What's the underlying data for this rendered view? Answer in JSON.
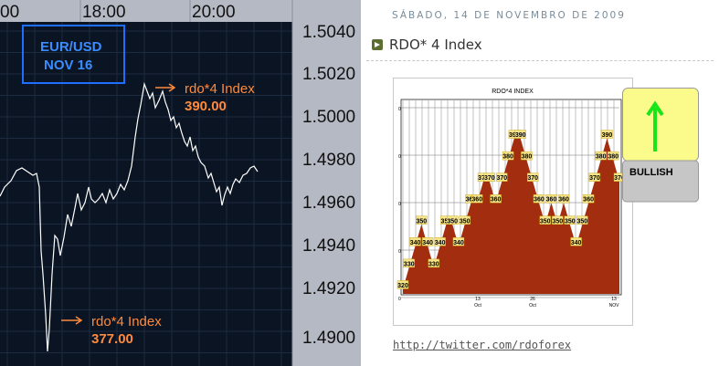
{
  "fx_chart": {
    "time_labels": [
      "00",
      "18:00",
      "20:00"
    ],
    "price_labels": [
      "1.5040",
      "1.5020",
      "1.5000",
      "1.4980",
      "1.4960",
      "1.4940",
      "1.4920",
      "1.4900"
    ],
    "badge_line1": "EUR/USD",
    "badge_line2": "NOV 16",
    "annotation_high_label": "rdo*4 Index",
    "annotation_high_value": "390.00",
    "annotation_low_label": "rdo*4 Index",
    "annotation_low_value": "377.00",
    "colors": {
      "background": "#0b1422",
      "axis_panel": "#b4b9c4",
      "line": "#ffffff",
      "annotation": "#ff8a3c",
      "badge_border": "#1e6fff"
    }
  },
  "blog": {
    "date": "SÁBADO, 14 DE NOVEMBRO DE 2009",
    "post_title": "RDO* 4 Index",
    "link": "http://twitter.com/rdoforex"
  },
  "chart_data": {
    "type": "area",
    "title": "RDO*4 INDEX",
    "x_tick_labels": [
      "13",
      "Oct",
      "26",
      "Oct",
      "13",
      "NOV"
    ],
    "y_tick_labels": [
      "0",
      "0",
      "0",
      "0",
      "0"
    ],
    "values": [
      320,
      330,
      340,
      350,
      340,
      330,
      340,
      350,
      350,
      340,
      350,
      360,
      360,
      370,
      370,
      360,
      370,
      380,
      390,
      390,
      380,
      370,
      360,
      350,
      360,
      350,
      360,
      350,
      340,
      350,
      360,
      370,
      380,
      390,
      380,
      370
    ],
    "labels": [
      "320",
      "330",
      "340",
      "350",
      "340",
      "330",
      "340",
      "350",
      "350",
      "340",
      "350",
      "360",
      "360",
      "370",
      "370",
      "360",
      "370",
      "380",
      "390",
      "390",
      "380",
      "370",
      "360",
      "350",
      "360",
      "350",
      "360",
      "350",
      "340",
      "350",
      "360",
      "370",
      "380",
      "390",
      "380",
      "370"
    ],
    "signal": "BULLISH",
    "colors": {
      "area": "#a32d0f",
      "label_bg": "#f5e48a",
      "signal_top": "#fbfb8c",
      "signal_bottom": "#c6c6c6",
      "arrow": "#19e619"
    }
  }
}
